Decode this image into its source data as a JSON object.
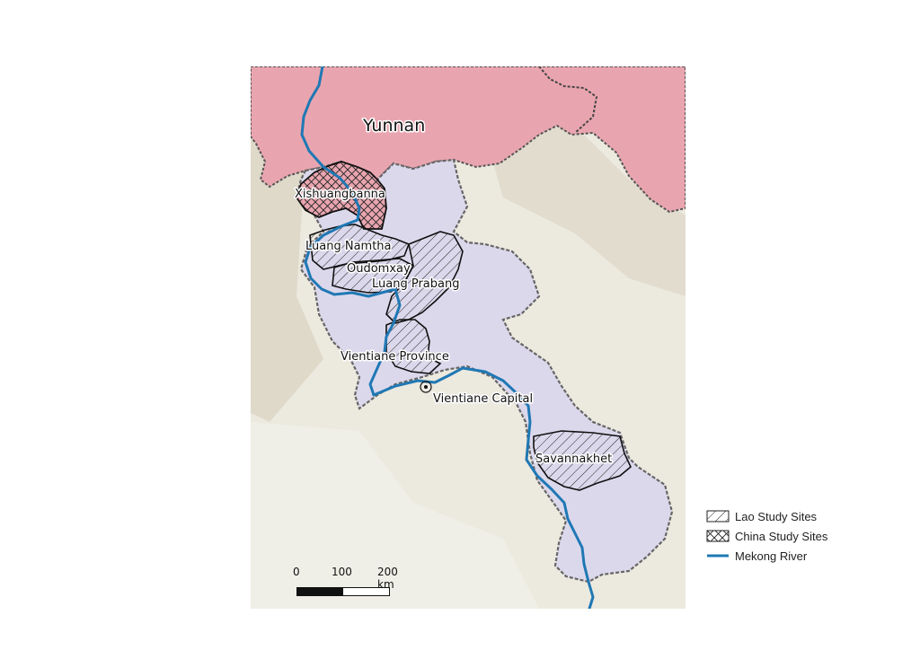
{
  "map": {
    "regions": {
      "yunnan": "Yunnan"
    },
    "study_sites": {
      "xishuangbanna": "Xishuangbanna",
      "luang_namtha": "Luang Namtha",
      "oudomxay": "Oudomxay",
      "luang_prabang": "Luang Prabang",
      "vientiane_province": "Vientiane Province",
      "vientiane_capital": "Vientiane Capital",
      "savannakhet": "Savannakhet"
    },
    "colors": {
      "china": "#e8a2ad",
      "laos": "#d9d6ea",
      "terrain": "#e9e6dc",
      "mekong": "#1f78b4",
      "border": "#555555"
    }
  },
  "legend": {
    "lao_sites": "Lao Study Sites",
    "china_sites": "China Study Sites",
    "mekong": "Mekong River"
  },
  "scalebar": {
    "ticks": [
      "0",
      "100",
      "200 km"
    ]
  }
}
